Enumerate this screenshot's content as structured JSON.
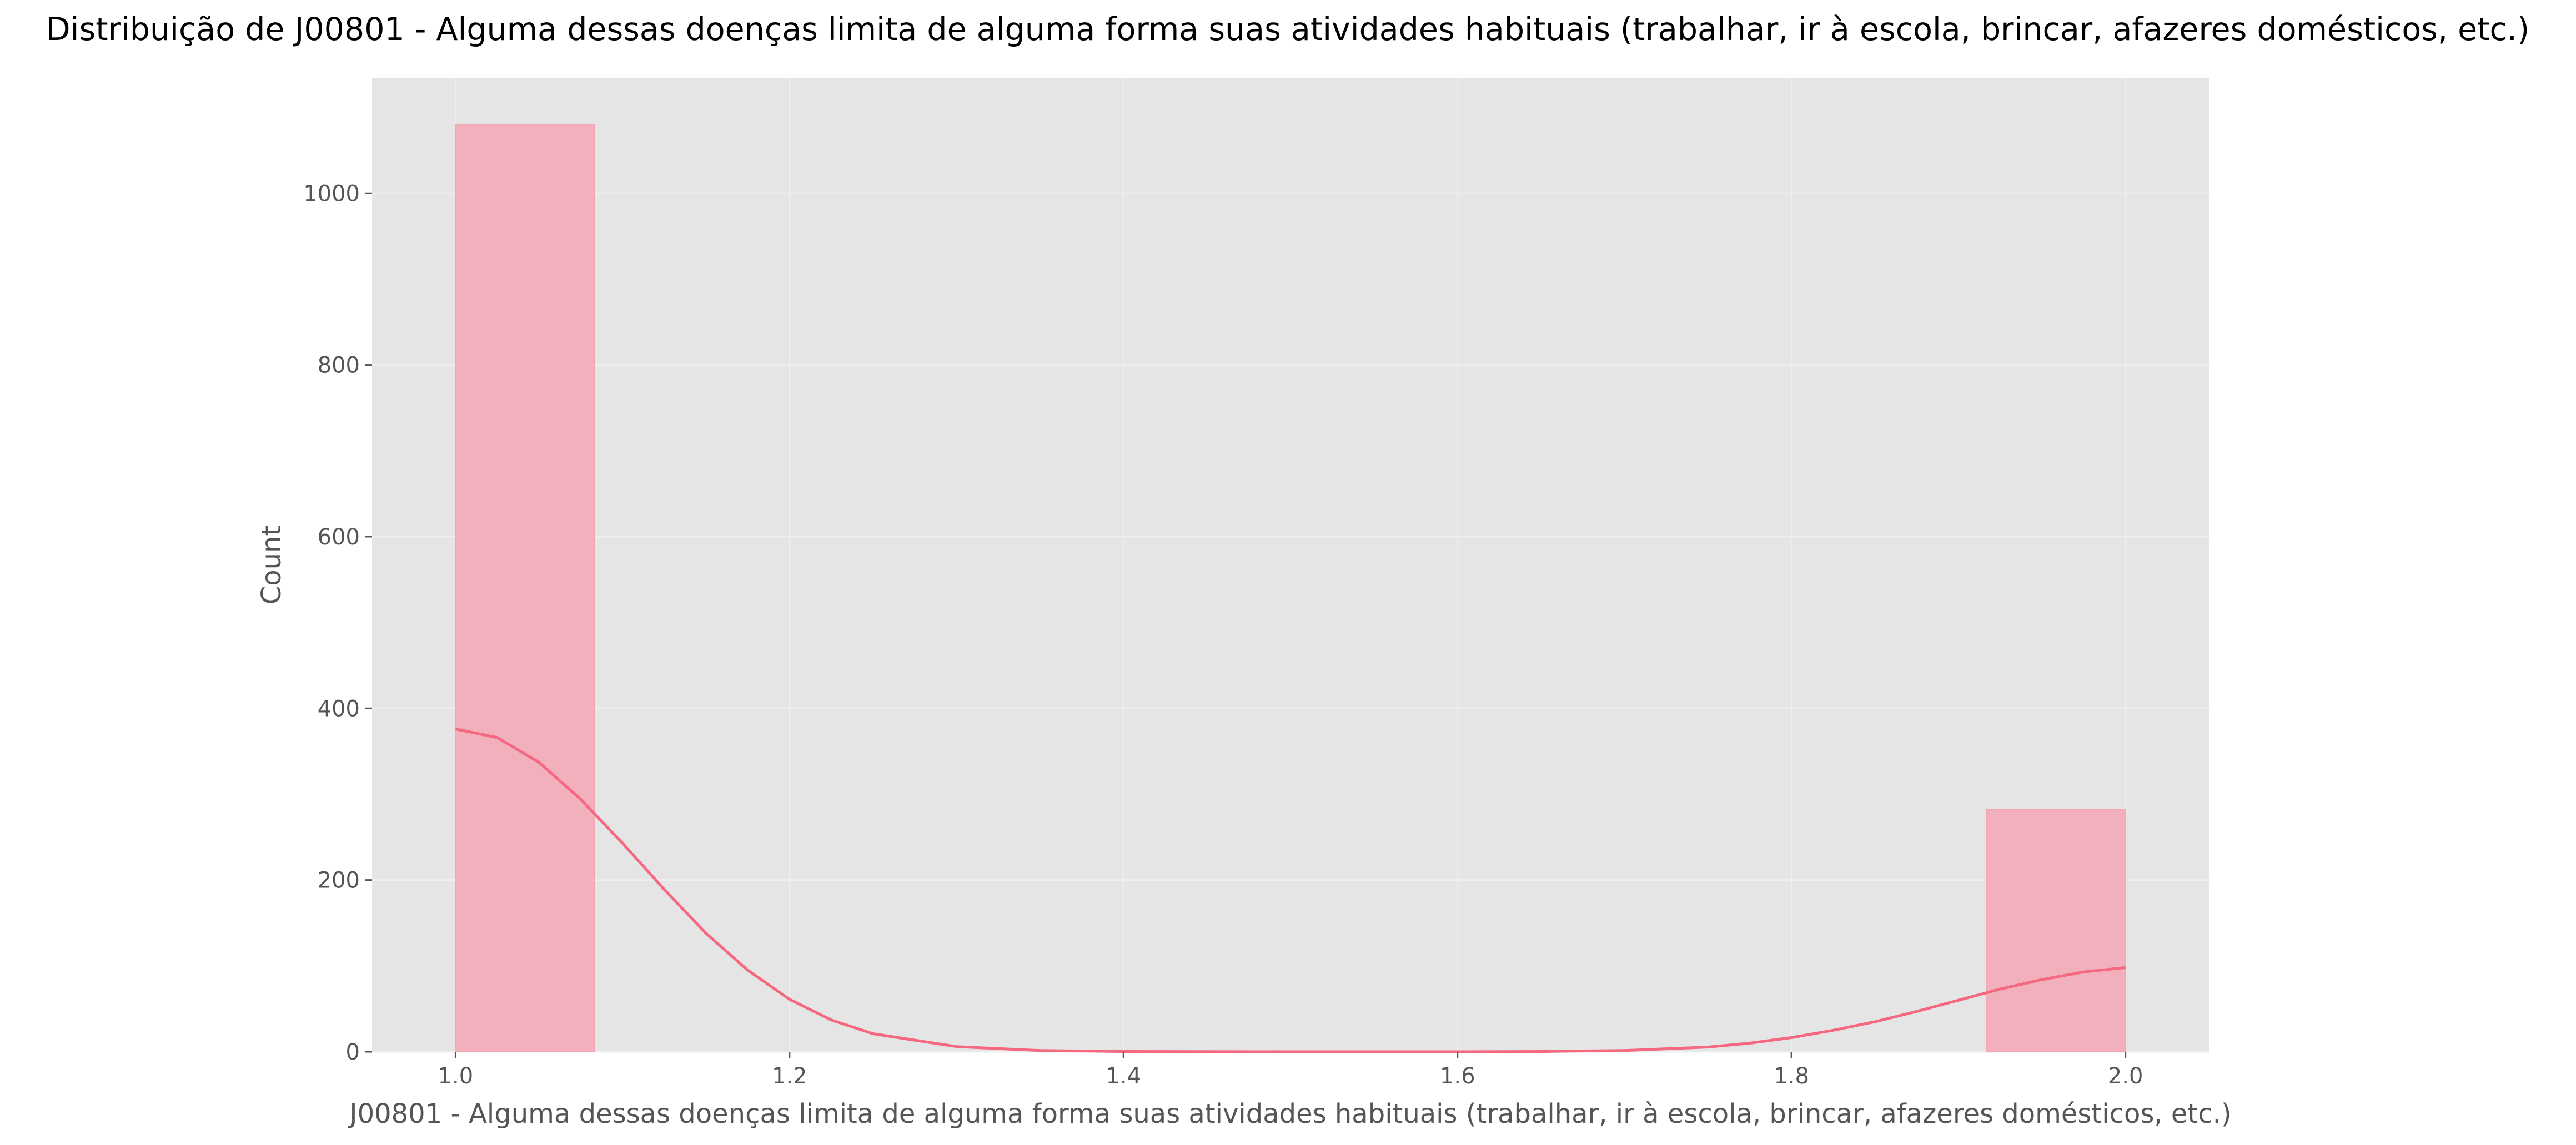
{
  "chart_data": {
    "type": "bar",
    "title": "Distribuição de J00801 - Alguma dessas doenças limita de alguma forma suas atividades habituais (trabalhar, ir à escola, brincar, afazeres domésticos, etc.)",
    "xlabel": "J00801 - Alguma dessas doenças limita de alguma forma suas atividades habituais (trabalhar, ir à escola, brincar, afazeres domésticos, etc.)",
    "ylabel": "Count",
    "xlim": [
      0.95,
      2.05
    ],
    "ylim": [
      0,
      1134
    ],
    "x_ticks": [
      1.0,
      1.2,
      1.4,
      1.6,
      1.8,
      2.0
    ],
    "x_tick_labels": [
      "1.0",
      "1.2",
      "1.4",
      "1.6",
      "1.8",
      "2.0"
    ],
    "y_ticks": [
      0,
      200,
      400,
      600,
      800,
      1000
    ],
    "y_tick_labels": [
      "0",
      "200",
      "400",
      "600",
      "800",
      "1000"
    ],
    "grid": true,
    "bins": [
      {
        "x_start": 1.0,
        "x_end": 1.0833,
        "count": 1080
      },
      {
        "x_start": 1.9167,
        "x_end": 2.0,
        "count": 282
      }
    ],
    "kde": {
      "x": [
        1.0,
        1.025,
        1.05,
        1.075,
        1.1,
        1.125,
        1.15,
        1.175,
        1.2,
        1.225,
        1.25,
        1.3,
        1.35,
        1.4,
        1.5,
        1.6,
        1.65,
        1.7,
        1.75,
        1.775,
        1.8,
        1.825,
        1.85,
        1.875,
        1.9,
        1.925,
        1.95,
        1.975,
        2.0
      ],
      "y": [
        376,
        366,
        337,
        294,
        243,
        189,
        138,
        95,
        61,
        37,
        21,
        6,
        1.4,
        0.3,
        0,
        0,
        0.3,
        1.5,
        5.5,
        10,
        16.5,
        25,
        35,
        47,
        60,
        73,
        84,
        93,
        98
      ]
    },
    "colors": {
      "bar_fill": "#f4a6b5",
      "bar_opacity": "0.85",
      "kde_line": "#f5687f",
      "plot_background": "#e5e5e5",
      "grid": "#eeeeee",
      "tick_color": "#555555"
    }
  }
}
